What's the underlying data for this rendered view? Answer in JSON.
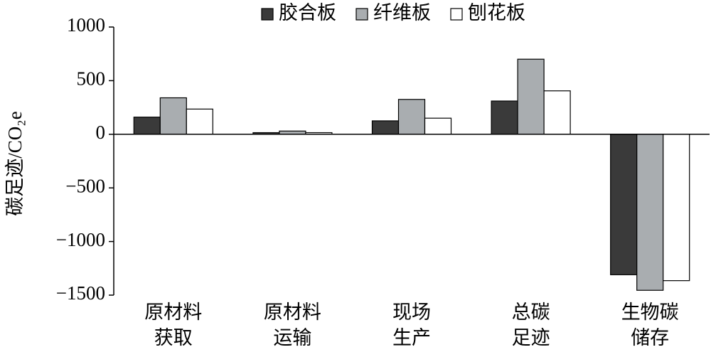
{
  "chart_data": {
    "type": "bar",
    "y_label": "碳足迹/CO₂e",
    "categories": [
      [
        "原材料",
        "获取"
      ],
      [
        "原材料",
        "运输"
      ],
      [
        "现场",
        "生产"
      ],
      [
        "总碳",
        "足迹"
      ],
      [
        "生物碳",
        "储存"
      ]
    ],
    "series": [
      {
        "name": "胶合板",
        "color": "#3a3a3a",
        "values": [
          160,
          15,
          125,
          310,
          -1310
        ]
      },
      {
        "name": "纤维板",
        "color": "#a9adb0",
        "values": [
          340,
          30,
          325,
          700,
          -1455
        ]
      },
      {
        "name": "刨花板",
        "color": "#ffffff",
        "values": [
          235,
          15,
          150,
          405,
          -1365
        ]
      }
    ],
    "ylim": [
      -1500,
      1000
    ],
    "yticks": [
      {
        "value": -1500,
        "label": "−1500"
      },
      {
        "value": -1000,
        "label": "−1000"
      },
      {
        "value": -500,
        "label": "−500"
      },
      0,
      500,
      1000
    ],
    "legend": "top"
  }
}
